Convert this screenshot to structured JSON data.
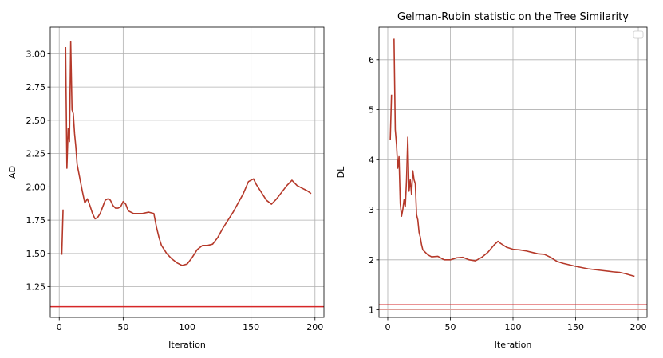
{
  "chart_data": [
    {
      "type": "line",
      "title": "",
      "xlabel": "Iteration",
      "ylabel": "AD",
      "xlim": [
        -7,
        207
      ],
      "ylim": [
        1.02,
        3.2
      ],
      "xticks": [
        0,
        50,
        100,
        150,
        200
      ],
      "yticks": [
        1.25,
        1.5,
        1.75,
        2.0,
        2.25,
        2.5,
        2.75,
        3.0
      ],
      "ytick_labels": [
        "1.25",
        "1.50",
        "1.75",
        "2.00",
        "2.25",
        "2.50",
        "2.75",
        "3.00"
      ],
      "grid": true,
      "line_color": "#b5392a",
      "threshold": {
        "y": 1.1,
        "color": "#d62728"
      },
      "series": [
        {
          "x": [
            2,
            3,
            4,
            5,
            6,
            7,
            8,
            9,
            10,
            11,
            12,
            13,
            14,
            15,
            16,
            18,
            20,
            22,
            24,
            26,
            28,
            30,
            32,
            34,
            36,
            38,
            40,
            42,
            44,
            46,
            48,
            50,
            52,
            54,
            56,
            58,
            60,
            65,
            70,
            74,
            76,
            78,
            80,
            84,
            88,
            92,
            96,
            100,
            104,
            108,
            112,
            116,
            120,
            124,
            128,
            132,
            136,
            140,
            144,
            148,
            152,
            154,
            158,
            162,
            166,
            170,
            174,
            178,
            182,
            186,
            190,
            194,
            197
          ],
          "y": [
            1.49,
            1.83,
            null,
            3.05,
            2.14,
            2.44,
            2.34,
            3.09,
            2.58,
            2.55,
            2.4,
            2.3,
            2.17,
            2.12,
            2.07,
            1.97,
            1.88,
            1.91,
            1.86,
            1.8,
            1.76,
            1.77,
            1.8,
            1.85,
            1.9,
            1.91,
            1.9,
            1.86,
            1.84,
            1.84,
            1.85,
            1.89,
            1.87,
            1.82,
            1.81,
            1.8,
            1.8,
            1.8,
            1.81,
            1.8,
            1.7,
            1.62,
            1.56,
            1.5,
            1.46,
            1.43,
            1.41,
            1.42,
            1.47,
            1.53,
            1.56,
            1.56,
            1.57,
            1.62,
            1.69,
            1.75,
            1.81,
            1.88,
            1.95,
            2.04,
            2.06,
            2.02,
            1.96,
            1.9,
            1.87,
            1.91,
            1.96,
            2.01,
            2.05,
            2.01,
            1.99,
            1.97,
            1.95
          ]
        }
      ]
    },
    {
      "type": "line",
      "title": "Gelman-Rubin statistic on the Tree Similarity",
      "xlabel": "Iteration",
      "ylabel": "DL",
      "xlim": [
        -7,
        207
      ],
      "ylim": [
        0.85,
        6.65
      ],
      "xticks": [
        0,
        50,
        100,
        150,
        200
      ],
      "yticks": [
        1,
        2,
        3,
        4,
        5,
        6
      ],
      "ytick_labels": [
        "1",
        "2",
        "3",
        "4",
        "5",
        "6"
      ],
      "grid": true,
      "legend": "top-right",
      "line_color": "#b5392a",
      "threshold": {
        "y": 1.1,
        "color": "#d62728"
      },
      "series": [
        {
          "x": [
            2,
            3,
            4,
            5,
            6,
            7,
            8,
            9,
            10,
            11,
            12,
            13,
            14,
            15,
            16,
            17,
            18,
            19,
            20,
            21,
            22,
            23,
            24,
            25,
            26,
            27,
            28,
            30,
            32,
            35,
            40,
            45,
            50,
            55,
            60,
            65,
            70,
            75,
            80,
            85,
            88,
            90,
            95,
            100,
            105,
            110,
            115,
            120,
            125,
            130,
            135,
            140,
            145,
            150,
            160,
            170,
            180,
            185,
            190,
            197
          ],
          "y": [
            4.4,
            5.3,
            null,
            6.42,
            4.6,
            4.3,
            3.83,
            4.06,
            3.12,
            2.87,
            3.0,
            3.2,
            3.06,
            3.6,
            4.45,
            3.37,
            3.6,
            3.3,
            3.78,
            3.6,
            3.52,
            2.9,
            2.8,
            2.55,
            2.45,
            2.3,
            2.2,
            2.15,
            2.1,
            2.06,
            2.07,
            2.0,
            2.0,
            2.04,
            2.05,
            2.0,
            1.98,
            2.05,
            2.15,
            2.3,
            2.37,
            2.33,
            2.25,
            2.21,
            2.2,
            2.18,
            2.15,
            2.12,
            2.11,
            2.05,
            1.97,
            1.93,
            1.9,
            1.87,
            1.82,
            1.79,
            1.76,
            1.75,
            1.72,
            1.67
          ]
        }
      ]
    }
  ]
}
